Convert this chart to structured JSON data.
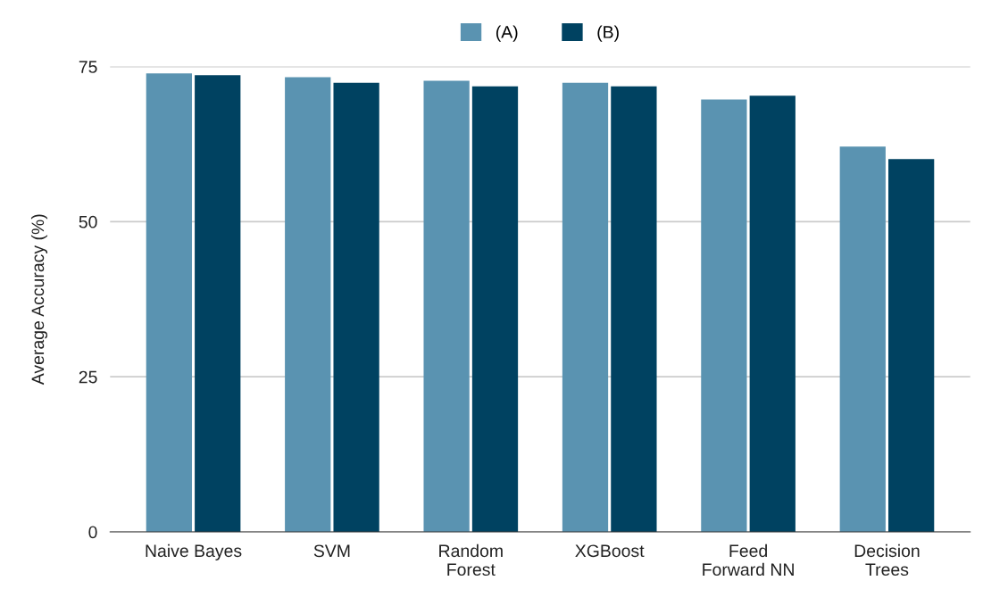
{
  "chart_data": {
    "type": "bar",
    "ylabel": "Average Accuracy (%)",
    "categories": [
      "Naive Bayes",
      "SVM",
      "Random\nForest",
      "XGBoost",
      "Feed\nForward NN",
      "Decision\nTrees"
    ],
    "series": [
      {
        "name": "(A)",
        "color": "#5a93b1",
        "values": [
          73.9,
          73.3,
          72.7,
          72.4,
          69.7,
          62.1
        ]
      },
      {
        "name": "(B)",
        "color": "#004261",
        "values": [
          73.6,
          72.4,
          71.8,
          71.8,
          70.3,
          60.1
        ]
      }
    ],
    "ylim": [
      0,
      75
    ],
    "yticks": [
      0,
      25,
      50,
      75
    ],
    "grid": "y",
    "legend": "top"
  }
}
